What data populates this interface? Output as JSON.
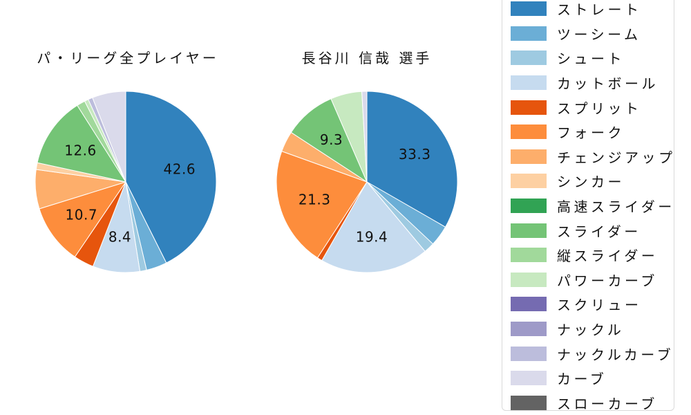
{
  "figure": {
    "background": "#ffffff",
    "left_chart_title": "パ・リーグ全プレイヤー",
    "right_chart_title": "長谷川 信哉 選手"
  },
  "legend": {
    "position": "right",
    "items": [
      {
        "label": "ストレート",
        "color": "#3182bd"
      },
      {
        "label": "ツーシーム",
        "color": "#6baed6"
      },
      {
        "label": "シュート",
        "color": "#9ecae1"
      },
      {
        "label": "カットボール",
        "color": "#c6dbef"
      },
      {
        "label": "スプリット",
        "color": "#e6550d"
      },
      {
        "label": "フォーク",
        "color": "#fd8d3c"
      },
      {
        "label": "チェンジアップ",
        "color": "#fdae6b"
      },
      {
        "label": "シンカー",
        "color": "#fdd0a2"
      },
      {
        "label": "高速スライダー",
        "color": "#31a354"
      },
      {
        "label": "スライダー",
        "color": "#74c476"
      },
      {
        "label": "縦スライダー",
        "color": "#a1d99b"
      },
      {
        "label": "パワーカーブ",
        "color": "#c7e9c0"
      },
      {
        "label": "スクリュー",
        "color": "#756bb1"
      },
      {
        "label": "ナックル",
        "color": "#9e9ac8"
      },
      {
        "label": "ナックルカーブ",
        "color": "#bcbddc"
      },
      {
        "label": "カーブ",
        "color": "#dadaeb"
      },
      {
        "label": "スローカーブ",
        "color": "#636363"
      }
    ]
  },
  "chart_data": [
    {
      "type": "pie",
      "title": "パ・リーグ全プレイヤー",
      "unit": "percent",
      "start_angle": "12-oclock",
      "direction": "clockwise",
      "value_labels_shown_for": [
        42.6,
        8.4,
        10.7,
        12.6
      ],
      "slices": [
        {
          "label": "ストレート",
          "value": 42.6,
          "color": "#3182bd",
          "value_label": "42.6"
        },
        {
          "label": "ツーシーム",
          "value": 3.7,
          "color": "#6baed6",
          "value_label": null
        },
        {
          "label": "シュート",
          "value": 1.2,
          "color": "#9ecae1",
          "value_label": null
        },
        {
          "label": "カットボール",
          "value": 8.4,
          "color": "#c6dbef",
          "value_label": "8.4"
        },
        {
          "label": "スプリット",
          "value": 3.6,
          "color": "#e6550d",
          "value_label": null
        },
        {
          "label": "フォーク",
          "value": 10.7,
          "color": "#fd8d3c",
          "value_label": "10.7"
        },
        {
          "label": "チェンジアップ",
          "value": 7.0,
          "color": "#fdae6b",
          "value_label": null
        },
        {
          "label": "シンカー",
          "value": 1.2,
          "color": "#fdd0a2",
          "value_label": null
        },
        {
          "label": "スライダー",
          "value": 12.6,
          "color": "#74c476",
          "value_label": "12.6"
        },
        {
          "label": "縦スライダー",
          "value": 1.5,
          "color": "#a1d99b",
          "value_label": null
        },
        {
          "label": "パワーカーブ",
          "value": 0.7,
          "color": "#c7e9c0",
          "value_label": null
        },
        {
          "label": "ナックルカーブ",
          "value": 0.8,
          "color": "#bcbddc",
          "value_label": null
        },
        {
          "label": "カーブ",
          "value": 6.0,
          "color": "#dadaeb",
          "value_label": null
        }
      ]
    },
    {
      "type": "pie",
      "title": "長谷川 信哉 選手",
      "unit": "percent",
      "start_angle": "12-oclock",
      "direction": "clockwise",
      "value_labels_shown_for": [
        33.3,
        19.4,
        21.3,
        9.3
      ],
      "slices": [
        {
          "label": "ストレート",
          "value": 33.3,
          "color": "#3182bd",
          "value_label": "33.3"
        },
        {
          "label": "ツーシーム",
          "value": 3.7,
          "color": "#6baed6",
          "value_label": null
        },
        {
          "label": "シュート",
          "value": 1.9,
          "color": "#9ecae1",
          "value_label": null
        },
        {
          "label": "カットボール",
          "value": 19.4,
          "color": "#c6dbef",
          "value_label": "19.4"
        },
        {
          "label": "スプリット",
          "value": 0.9,
          "color": "#e6550d",
          "value_label": null
        },
        {
          "label": "フォーク",
          "value": 21.3,
          "color": "#fd8d3c",
          "value_label": "21.3"
        },
        {
          "label": "チェンジアップ",
          "value": 3.7,
          "color": "#fdae6b",
          "value_label": null
        },
        {
          "label": "スライダー",
          "value": 9.3,
          "color": "#74c476",
          "value_label": "9.3"
        },
        {
          "label": "パワーカーブ",
          "value": 5.6,
          "color": "#c7e9c0",
          "value_label": null
        },
        {
          "label": "カーブ",
          "value": 0.9,
          "color": "#dadaeb",
          "value_label": null
        }
      ]
    }
  ]
}
